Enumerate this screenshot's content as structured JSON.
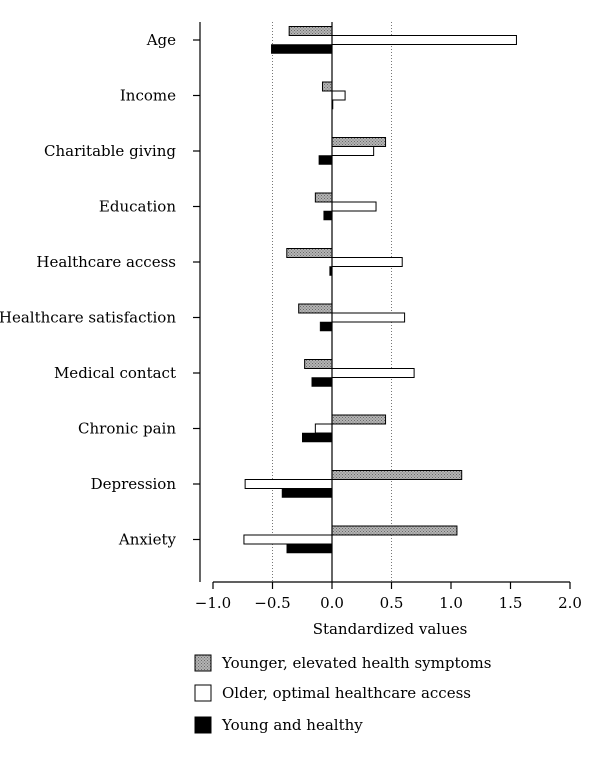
{
  "chart_data": {
    "type": "bar",
    "orientation": "horizontal",
    "categories": [
      "Age",
      "Income",
      "Charitable giving",
      "Education",
      "Healthcare access",
      "Healthcare satisfaction",
      "Medical contact",
      "Chronic pain",
      "Depression",
      "Anxiety"
    ],
    "series": [
      {
        "name": "Younger, elevated health symptoms",
        "color": "#a8a8a8",
        "pattern": "dotted",
        "values": [
          -0.36,
          -0.08,
          0.45,
          -0.14,
          -0.38,
          -0.28,
          -0.23,
          0.45,
          1.09,
          1.05
        ]
      },
      {
        "name": "Older, optimal healthcare access",
        "color": "#ffffff",
        "pattern": "none",
        "values": [
          1.55,
          0.11,
          0.35,
          0.37,
          0.59,
          0.61,
          0.69,
          -0.14,
          -0.73,
          -0.74
        ]
      },
      {
        "name": "Young and healthy",
        "color": "#000000",
        "pattern": "none",
        "values": [
          -0.51,
          0.0,
          -0.11,
          -0.07,
          -0.02,
          -0.1,
          -0.17,
          -0.25,
          -0.42,
          -0.38
        ]
      }
    ],
    "xlabel": "Standardized values",
    "xlim": [
      -1.0,
      2.0
    ],
    "xticks": [
      "−1.0",
      "−0.5",
      "0.0",
      "0.5",
      "1.0",
      "1.5",
      "2.0"
    ],
    "reference_lines": [
      -0.5,
      0.0,
      0.5
    ],
    "legend_position": "bottom-center"
  }
}
